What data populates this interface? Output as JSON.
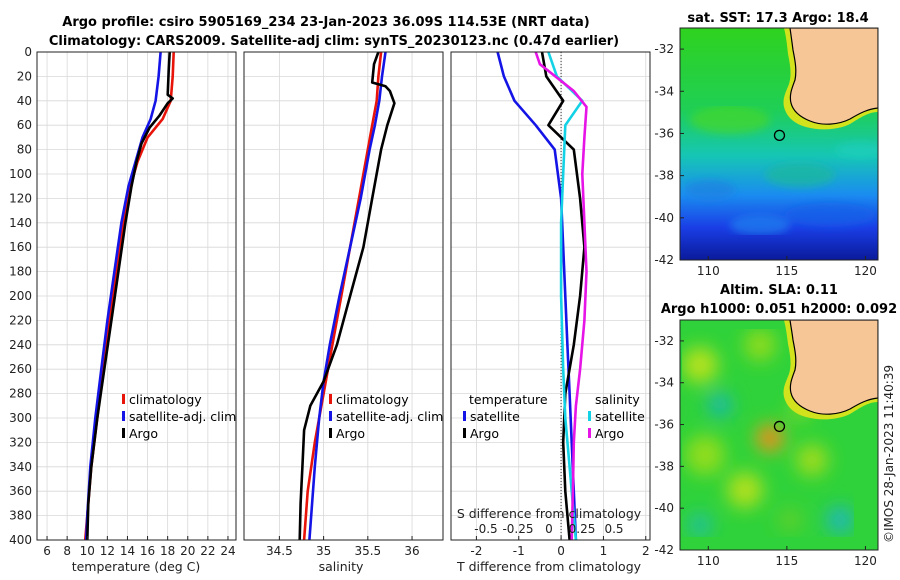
{
  "figure": {
    "title_line1": "Argo profile: csiro 5905169_234 23-Jan-2023 36.09S 114.53E (NRT data)",
    "title_line2": "Climatology: CARS2009. Satellite-adj clim: synTS_20230123.nc (0.47d earlier)",
    "sst_title": "sat. SST: 17.3 Argo: 18.4",
    "sla_title1": "Altim. SLA: 0.11",
    "sla_title2": "Argo h1000: 0.051 h2000: 0.092",
    "copyright": "©IMOS 28-Jan-2023 11:40:39"
  },
  "colors": {
    "climatology": "#e8140a",
    "satellite": "#1414e6",
    "argo": "#000000",
    "sal_satellite": "#14d2e6",
    "sal_argo": "#e614e6",
    "land": "#f7c697"
  },
  "chart_data": [
    {
      "type": "line",
      "panel": "temperature",
      "xlabel": "temperature (deg C)",
      "ylabel": "",
      "xlim": [
        5,
        24.8
      ],
      "ylim": [
        400,
        0
      ],
      "xticks": [
        6,
        8,
        10,
        12,
        14,
        16,
        18,
        20,
        22,
        24
      ],
      "yticks": [
        0,
        20,
        40,
        60,
        80,
        100,
        120,
        140,
        160,
        180,
        200,
        220,
        240,
        260,
        280,
        300,
        320,
        340,
        360,
        380,
        400
      ],
      "legend": [
        "climatology",
        "satellite-adj. clim",
        "Argo"
      ],
      "series": [
        {
          "name": "climatology",
          "color": "climatology",
          "points": [
            [
              18.6,
              0
            ],
            [
              18.5,
              20
            ],
            [
              18.3,
              40
            ],
            [
              17.5,
              55
            ],
            [
              16.0,
              70
            ],
            [
              15.0,
              90
            ],
            [
              14.3,
              110
            ],
            [
              13.6,
              140
            ],
            [
              12.9,
              180
            ],
            [
              12.2,
              220
            ],
            [
              11.6,
              260
            ],
            [
              11.0,
              300
            ],
            [
              10.4,
              340
            ],
            [
              10.0,
              380
            ],
            [
              9.8,
              400
            ]
          ]
        },
        {
          "name": "satellite-adj. clim",
          "color": "satellite",
          "points": [
            [
              17.3,
              0
            ],
            [
              17.1,
              20
            ],
            [
              16.8,
              40
            ],
            [
              16.3,
              55
            ],
            [
              15.5,
              70
            ],
            [
              14.8,
              90
            ],
            [
              14.1,
              110
            ],
            [
              13.4,
              140
            ],
            [
              12.7,
              180
            ],
            [
              12.0,
              220
            ],
            [
              11.4,
              260
            ],
            [
              10.8,
              300
            ],
            [
              10.3,
              340
            ],
            [
              10.0,
              380
            ],
            [
              9.9,
              400
            ]
          ]
        },
        {
          "name": "Argo",
          "color": "argo",
          "points": [
            [
              18.2,
              0
            ],
            [
              18.1,
              15
            ],
            [
              18.0,
              35
            ],
            [
              18.5,
              38
            ],
            [
              18.0,
              42
            ],
            [
              17.2,
              52
            ],
            [
              16.2,
              62
            ],
            [
              15.4,
              75
            ],
            [
              14.9,
              90
            ],
            [
              14.4,
              110
            ],
            [
              13.8,
              140
            ],
            [
              13.1,
              180
            ],
            [
              12.4,
              220
            ],
            [
              11.7,
              260
            ],
            [
              11.0,
              300
            ],
            [
              10.4,
              340
            ],
            [
              10.1,
              370
            ],
            [
              10.0,
              400
            ]
          ]
        }
      ]
    },
    {
      "type": "line",
      "panel": "salinity",
      "xlabel": "salinity",
      "ylabel": "",
      "xlim": [
        34.1,
        36.35
      ],
      "ylim": [
        400,
        0
      ],
      "xticks": [
        34.5,
        35,
        35.5,
        36
      ],
      "xtick_labels": [
        "34.5",
        "35",
        "35.5",
        "36"
      ],
      "legend": [
        "climatology",
        "satellite-adj. clim",
        "Argo"
      ],
      "series": [
        {
          "name": "climatology",
          "color": "climatology",
          "points": [
            [
              35.65,
              0
            ],
            [
              35.62,
              20
            ],
            [
              35.6,
              40
            ],
            [
              35.55,
              60
            ],
            [
              35.5,
              80
            ],
            [
              35.4,
              120
            ],
            [
              35.3,
              160
            ],
            [
              35.2,
              200
            ],
            [
              35.1,
              240
            ],
            [
              35.0,
              280
            ],
            [
              34.9,
              320
            ],
            [
              34.82,
              360
            ],
            [
              34.78,
              400
            ]
          ]
        },
        {
          "name": "satellite-adj. clim",
          "color": "satellite",
          "points": [
            [
              35.7,
              0
            ],
            [
              35.66,
              20
            ],
            [
              35.63,
              40
            ],
            [
              35.58,
              60
            ],
            [
              35.52,
              80
            ],
            [
              35.42,
              120
            ],
            [
              35.3,
              160
            ],
            [
              35.18,
              200
            ],
            [
              35.07,
              240
            ],
            [
              35.0,
              270
            ],
            [
              34.95,
              300
            ],
            [
              34.9,
              340
            ],
            [
              34.86,
              380
            ],
            [
              34.84,
              400
            ]
          ]
        },
        {
          "name": "Argo",
          "color": "argo",
          "points": [
            [
              35.62,
              0
            ],
            [
              35.57,
              10
            ],
            [
              35.55,
              25
            ],
            [
              35.7,
              28
            ],
            [
              35.75,
              32
            ],
            [
              35.8,
              42
            ],
            [
              35.72,
              60
            ],
            [
              35.65,
              80
            ],
            [
              35.55,
              120
            ],
            [
              35.45,
              160
            ],
            [
              35.3,
              200
            ],
            [
              35.15,
              240
            ],
            [
              35.0,
              270
            ],
            [
              34.85,
              290
            ],
            [
              34.78,
              310
            ],
            [
              34.76,
              340
            ],
            [
              34.74,
              370
            ],
            [
              34.73,
              400
            ]
          ]
        }
      ]
    },
    {
      "type": "line",
      "panel": "difference",
      "xlabel": "T difference from climatology",
      "xlabel2": "S difference from climatology",
      "xlim": [
        -2.6,
        2.1
      ],
      "ylim": [
        400,
        0
      ],
      "xticks": [
        -2,
        -1,
        0,
        1,
        2
      ],
      "s_ticks": [
        "-0.5",
        "-0.25",
        "0",
        "0.25",
        "0.5"
      ],
      "legend": [
        "temperature",
        "satellite",
        "Argo",
        "salinity",
        "satellite",
        "Argo"
      ],
      "series": [
        {
          "name": "T satellite",
          "color": "satellite",
          "points": [
            [
              -1.5,
              0
            ],
            [
              -1.35,
              20
            ],
            [
              -1.1,
              40
            ],
            [
              -0.6,
              60
            ],
            [
              -0.15,
              80
            ],
            [
              0.0,
              120
            ],
            [
              0.05,
              160
            ],
            [
              0.1,
              200
            ],
            [
              0.15,
              240
            ],
            [
              0.2,
              280
            ],
            [
              0.25,
              320
            ],
            [
              0.3,
              360
            ],
            [
              0.35,
              400
            ]
          ]
        },
        {
          "name": "T Argo",
          "color": "argo",
          "points": [
            [
              -0.45,
              0
            ],
            [
              -0.35,
              20
            ],
            [
              0.05,
              40
            ],
            [
              -0.3,
              60
            ],
            [
              0.3,
              80
            ],
            [
              0.45,
              120
            ],
            [
              0.55,
              160
            ],
            [
              0.45,
              200
            ],
            [
              0.3,
              240
            ],
            [
              0.1,
              280
            ],
            [
              0.05,
              320
            ],
            [
              0.1,
              360
            ],
            [
              0.2,
              400
            ]
          ]
        },
        {
          "name": "S satellite",
          "color": "sal_satellite",
          "points": [
            [
              -0.3,
              0
            ],
            [
              -0.1,
              20
            ],
            [
              0.5,
              40
            ],
            [
              0.1,
              60
            ],
            [
              0.05,
              100
            ],
            [
              0.0,
              140
            ],
            [
              0.0,
              200
            ],
            [
              0.05,
              260
            ],
            [
              0.1,
              300
            ],
            [
              0.2,
              340
            ],
            [
              0.3,
              380
            ],
            [
              0.35,
              400
            ]
          ]
        },
        {
          "name": "S Argo",
          "color": "sal_argo",
          "points": [
            [
              -0.6,
              0
            ],
            [
              -0.5,
              10
            ],
            [
              0.3,
              32
            ],
            [
              0.6,
              45
            ],
            [
              0.55,
              70
            ],
            [
              0.5,
              100
            ],
            [
              0.55,
              140
            ],
            [
              0.6,
              180
            ],
            [
              0.55,
              220
            ],
            [
              0.45,
              260
            ],
            [
              0.35,
              290
            ],
            [
              0.3,
              320
            ],
            [
              0.28,
              360
            ],
            [
              0.25,
              400
            ]
          ]
        }
      ]
    },
    {
      "type": "heatmap",
      "panel": "sat_sst_map",
      "title": "sat. SST: 17.3 Argo: 18.4",
      "xlim": [
        108.2,
        120.8
      ],
      "ylim": [
        -42,
        -31
      ],
      "xticks": [
        110,
        115,
        120
      ],
      "yticks": [
        -32,
        -34,
        -36,
        -38,
        -40,
        -42
      ],
      "marker": [
        114.53,
        -36.09
      ]
    },
    {
      "type": "heatmap",
      "panel": "altimetry_sla_map",
      "title": "Altim. SLA: 0.11",
      "title2": "Argo h1000: 0.051 h2000: 0.092",
      "xlim": [
        108.2,
        120.8
      ],
      "ylim": [
        -42,
        -31
      ],
      "xticks": [
        110,
        115,
        120
      ],
      "yticks": [
        -32,
        -34,
        -36,
        -38,
        -40,
        -42
      ],
      "marker": [
        114.53,
        -36.09
      ]
    }
  ]
}
